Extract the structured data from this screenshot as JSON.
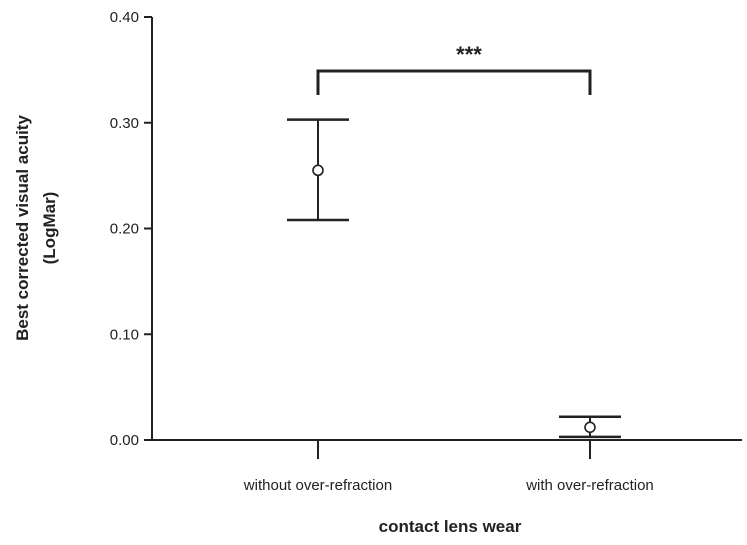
{
  "chart_data": {
    "type": "scatter",
    "xlabel": "contact lens wear",
    "ylabel_lines": [
      "Best corrected visual acuity",
      "(LogMar)"
    ],
    "ylim": [
      0,
      0.4
    ],
    "yticks": [
      0.0,
      0.1,
      0.2,
      0.3,
      0.4
    ],
    "ytick_labels": [
      "0.00",
      "0.10",
      "0.20",
      "0.30",
      "0.40"
    ],
    "categories": [
      "without over-refraction",
      "with over-refraction"
    ],
    "points": [
      {
        "category": "without over-refraction",
        "mean": 0.255,
        "ci_low": 0.208,
        "ci_high": 0.303
      },
      {
        "category": "with over-refraction",
        "mean": 0.012,
        "ci_low": 0.003,
        "ci_high": 0.022
      }
    ],
    "significance": {
      "label": "***",
      "between": [
        "without over-refraction",
        "with over-refraction"
      ]
    },
    "grid": false,
    "colors": {
      "ink": "#222222",
      "background": "#ffffff"
    }
  }
}
